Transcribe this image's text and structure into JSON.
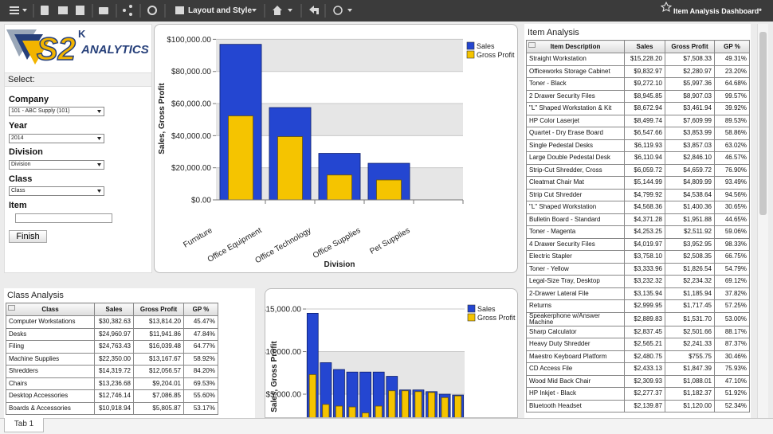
{
  "toolbar": {
    "layout_menu": "Layout and Style",
    "dashboard_title": "Item Analysis Dashboard*"
  },
  "logo": {
    "mark": "S2",
    "superscript": "K",
    "text": "ANALYTICS"
  },
  "filters": {
    "heading": "Select:",
    "company_label": "Company",
    "company_value": "101  -  ABC Supply (101)",
    "year_label": "Year",
    "year_value": "2014",
    "division_label": "Division",
    "division_value": "Division",
    "class_label": "Class",
    "class_value": "Class",
    "item_label": "Item",
    "button": "Finish"
  },
  "chart_data": [
    {
      "type": "bar",
      "y_label": "Sales, Gross Profit",
      "x_label": "Division",
      "categories": [
        "Furniture",
        "Office Equipment",
        "Office Technology",
        "Office Supplies",
        "Pet Supplies"
      ],
      "series": [
        {
          "name": "Sales",
          "color": "#2446d1",
          "values": [
            96900,
            57500,
            29000,
            22800,
            0
          ]
        },
        {
          "name": "Gross Profit",
          "color": "#f5c400",
          "values": [
            52300,
            39400,
            15500,
            12400,
            0
          ]
        }
      ],
      "ylim": [
        0,
        105000
      ],
      "yticks": [
        {
          "value": 0,
          "label": "$0.00"
        },
        {
          "value": 20000,
          "label": "$20,000.00"
        },
        {
          "value": 40000,
          "label": "$40,000.00"
        },
        {
          "value": 60000,
          "label": "$60,000.00"
        },
        {
          "value": 80000,
          "label": "$80,000.00"
        },
        {
          "value": 100000,
          "label": "$100,000.00"
        }
      ],
      "grid": true,
      "legend": "top-right"
    },
    {
      "type": "bar",
      "y_label": "Sales, Gross Profit",
      "categories": [
        null,
        null,
        null,
        null,
        null,
        null,
        null,
        null,
        null,
        null,
        null,
        null
      ],
      "series": [
        {
          "name": "Sales",
          "color": "#2446d1",
          "values": [
            14500,
            8700,
            7900,
            7600,
            7600,
            7600,
            7100,
            5500,
            5500,
            5300,
            5000,
            4900
          ]
        },
        {
          "name": "Gross Profit",
          "color": "#f5c400",
          "values": [
            7300,
            3800,
            3600,
            3500,
            2800,
            3600,
            5400,
            5400,
            5300,
            5200,
            4600,
            4800
          ]
        }
      ],
      "ylim": [
        0,
        16500
      ],
      "yticks": [
        {
          "value": 5000,
          "label": "$5,000.00"
        },
        {
          "value": 10000,
          "label": "$10,000.00"
        },
        {
          "value": 15000,
          "label": "$15,000.00"
        }
      ],
      "grid": true,
      "legend": "top-right"
    }
  ],
  "class_analysis": {
    "title": "Class Analysis",
    "columns": [
      "Class",
      "Sales",
      "Gross Profit",
      "GP %"
    ],
    "rows": [
      [
        "Computer Workstations",
        "$30,382.63",
        "$13,814.20",
        "45.47%"
      ],
      [
        "Desks",
        "$24,960.97",
        "$11,941.86",
        "47.84%"
      ],
      [
        "Filing",
        "$24,763.43",
        "$16,039.48",
        "64.77%"
      ],
      [
        "Machine Supplies",
        "$22,350.00",
        "$13,167.67",
        "58.92%"
      ],
      [
        "Shredders",
        "$14,319.72",
        "$12,056.57",
        "84.20%"
      ],
      [
        "Chairs",
        "$13,236.68",
        "$9,204.01",
        "69.53%"
      ],
      [
        "Desktop Accessories",
        "$12,746.14",
        "$7,086.85",
        "55.60%"
      ],
      [
        "Boards & Accessories",
        "$10,918.94",
        "$5,805.87",
        "53.17%"
      ]
    ]
  },
  "item_analysis": {
    "title": "Item Analysis",
    "columns": [
      "Item Description",
      "Sales",
      "Gross Profit",
      "GP %"
    ],
    "rows": [
      [
        "Straight Workstation",
        "$15,228.20",
        "$7,508.33",
        "49.31%"
      ],
      [
        "Officeworks Storage Cabinet",
        "$9,832.97",
        "$2,280.97",
        "23.20%"
      ],
      [
        "Toner - Black",
        "$9,272.10",
        "$5,997.36",
        "64.68%"
      ],
      [
        "2 Drawer Security Files",
        "$8,945.85",
        "$8,907.03",
        "99.57%"
      ],
      [
        "\"L\" Shaped Workstation & Kit",
        "$8,672.94",
        "$3,461.94",
        "39.92%"
      ],
      [
        "HP Color Laserjet",
        "$8,499.74",
        "$7,609.99",
        "89.53%"
      ],
      [
        "Quartet - Dry Erase Board",
        "$6,547.66",
        "$3,853.99",
        "58.86%"
      ],
      [
        "Single Pedestal Desks",
        "$6,119.93",
        "$3,857.03",
        "63.02%"
      ],
      [
        "Large Double Pedestal Desk",
        "$6,110.94",
        "$2,846.10",
        "46.57%"
      ],
      [
        "Strip-Cut Shredder, Cross",
        "$6,059.72",
        "$4,659.72",
        "76.90%"
      ],
      [
        "Cleatmat Chair Mat",
        "$5,144.99",
        "$4,809.99",
        "93.49%"
      ],
      [
        "Strip Cut Shredder",
        "$4,799.92",
        "$4,538.64",
        "94.56%"
      ],
      [
        "\"L\" Shaped Workstation",
        "$4,568.36",
        "$1,400.36",
        "30.65%"
      ],
      [
        "Bulletin Board - Standard",
        "$4,371.28",
        "$1,951.88",
        "44.65%"
      ],
      [
        "Toner - Magenta",
        "$4,253.25",
        "$2,511.92",
        "59.06%"
      ],
      [
        "4 Drawer Security Files",
        "$4,019.97",
        "$3,952.95",
        "98.33%"
      ],
      [
        "Electric Stapler",
        "$3,758.10",
        "$2,508.35",
        "66.75%"
      ],
      [
        "Toner - Yellow",
        "$3,333.96",
        "$1,826.54",
        "54.79%"
      ],
      [
        "Legal-Size Tray, Desktop",
        "$3,232.32",
        "$2,234.32",
        "69.12%"
      ],
      [
        "2-Drawer Lateral File",
        "$3,135.94",
        "$1,185.94",
        "37.82%"
      ],
      [
        "Returns",
        "$2,999.95",
        "$1,717.45",
        "57.25%"
      ],
      [
        "Speakerphone w/Answer Machine",
        "$2,889.83",
        "$1,531.70",
        "53.00%"
      ],
      [
        "Sharp Calculator",
        "$2,837.45",
        "$2,501.66",
        "88.17%"
      ],
      [
        "Heavy Duty Shredder",
        "$2,565.21",
        "$2,241.33",
        "87.37%"
      ],
      [
        "Maestro Keyboard Platform",
        "$2,480.75",
        "$755.75",
        "30.46%"
      ],
      [
        "CD Access File",
        "$2,433.13",
        "$1,847.39",
        "75.93%"
      ],
      [
        "Wood Mid Back Chair",
        "$2,309.93",
        "$1,088.01",
        "47.10%"
      ],
      [
        "HP Inkjet - Black",
        "$2,277.37",
        "$1,182.37",
        "51.92%"
      ],
      [
        "Bluetooth Headset",
        "$2,139.87",
        "$1,120.00",
        "52.34%"
      ]
    ]
  },
  "tabs": [
    "Tab 1"
  ]
}
